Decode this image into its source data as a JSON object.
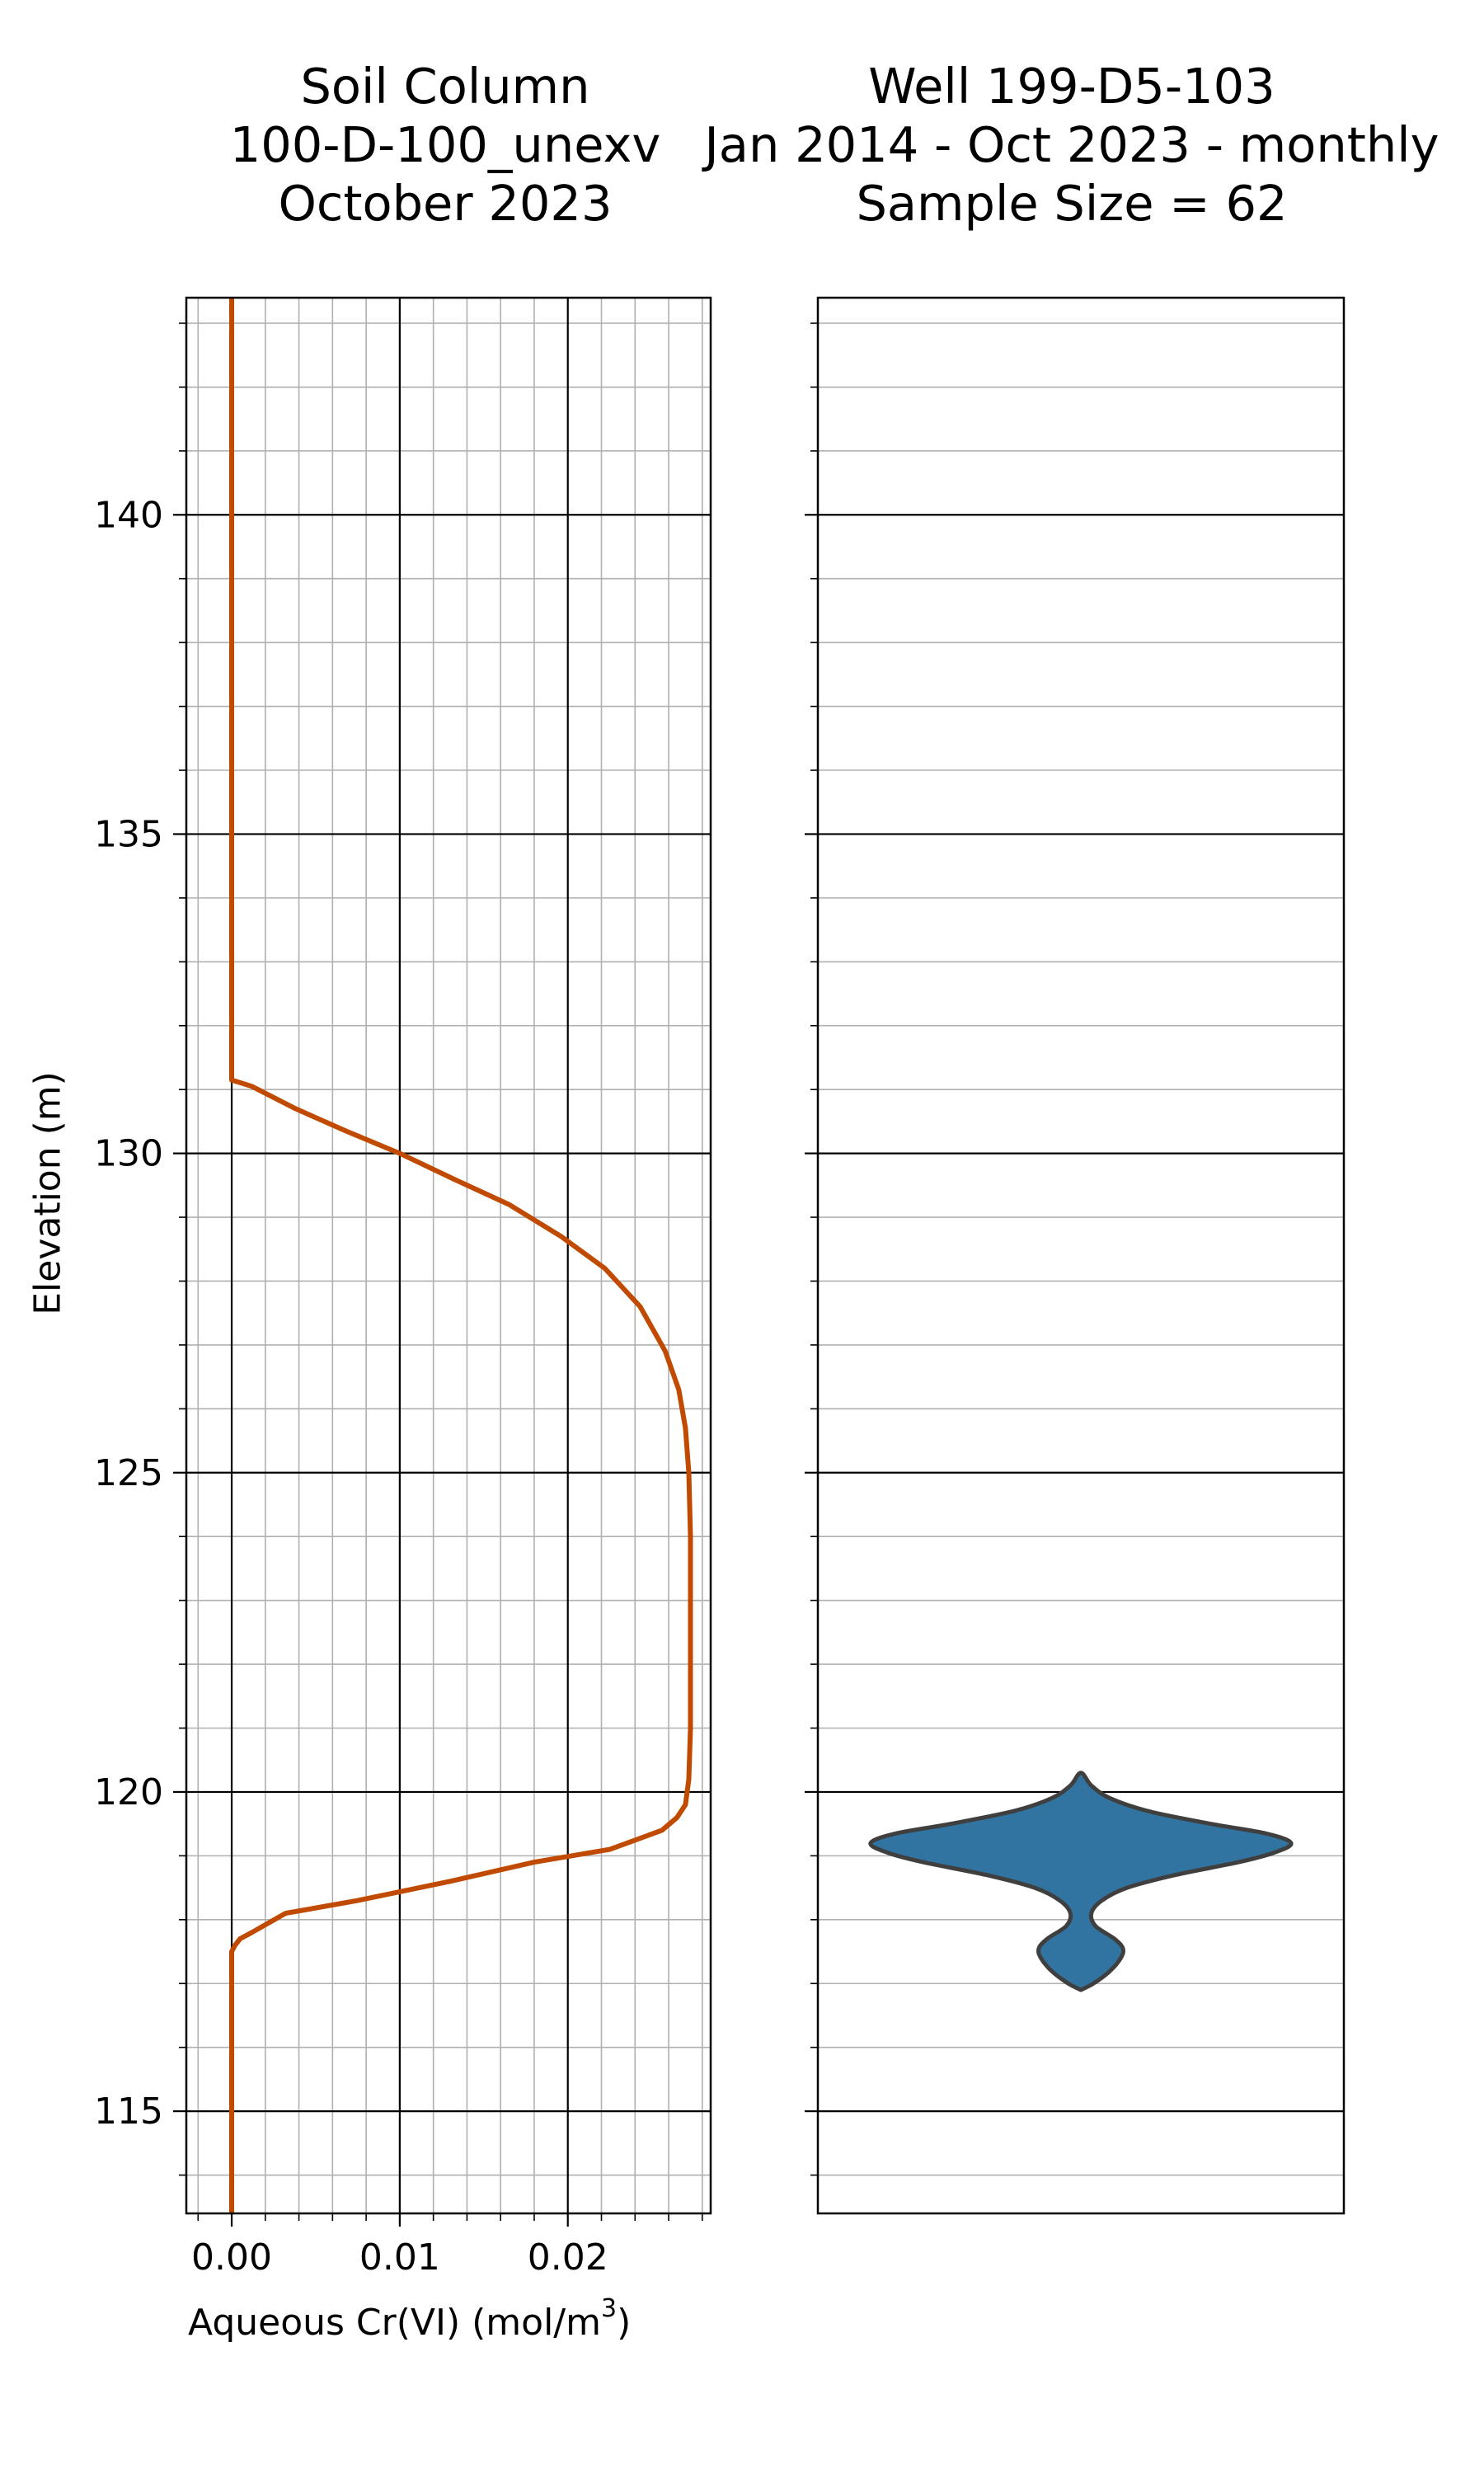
{
  "chart_data": [
    {
      "type": "line",
      "title_lines": [
        "Soil Column",
        "100-D-100_unexv",
        "October 2023"
      ],
      "xlabel_prefix": "Aqueous Cr(VI) (mol/m",
      "xlabel_sup": "3",
      "xlabel_suffix": ")",
      "ylabel": "Elevation (m)",
      "xlim": [
        -0.0027,
        0.0285
      ],
      "ylim": [
        113.4,
        143.4
      ],
      "xticks": [
        0.0,
        0.01,
        0.02
      ],
      "xtick_labels": [
        "0.00",
        "0.01",
        "0.02"
      ],
      "yticks": [
        115,
        120,
        125,
        130,
        135,
        140
      ],
      "ytick_labels": [
        "115",
        "120",
        "125",
        "130",
        "135",
        "140"
      ],
      "grid": true,
      "line_color": "#c04a00",
      "series": [
        {
          "x": [
            0.0,
            0.0,
            0.0,
            0.0,
            0.0,
            0.0,
            0.0,
            0.0,
            0.0,
            0.0,
            0.0002,
            0.0005,
            0.0012,
            0.0032,
            0.0075,
            0.013,
            0.018,
            0.0225,
            0.0256,
            0.0265,
            0.027,
            0.0272,
            0.0273,
            0.0273,
            0.0273,
            0.0272,
            0.027,
            0.0266,
            0.0258,
            0.0243,
            0.0222,
            0.0196,
            0.0165,
            0.0132,
            0.01,
            0.0068,
            0.0038,
            0.0012,
            0.0,
            0.0,
            0.0,
            0.0,
            0.0
          ],
          "y": [
            113.4,
            114.5,
            115.5,
            116.0,
            116.5,
            116.8,
            117.0,
            117.2,
            117.4,
            117.5,
            117.6,
            117.7,
            117.8,
            118.1,
            118.3,
            118.6,
            118.9,
            119.1,
            119.4,
            119.6,
            119.8,
            120.2,
            121.0,
            122.5,
            124.0,
            125.0,
            125.7,
            126.3,
            126.9,
            127.6,
            128.2,
            128.7,
            129.2,
            129.6,
            130.0,
            130.35,
            130.7,
            131.05,
            131.15,
            133.0,
            136.0,
            140.0,
            143.4
          ]
        }
      ]
    },
    {
      "type": "violin",
      "title_lines": [
        "Well 199-D5-103",
        "Jan 2014 - Oct 2023 - monthly",
        "Sample Size = 62"
      ],
      "ylim": [
        113.4,
        143.4
      ],
      "yticks": [
        115,
        120,
        125,
        130,
        135,
        140
      ],
      "grid": true,
      "fill_color": "#3274a1",
      "edge_color": "#3f3f3f",
      "density_elev": [
        116.9,
        117.0,
        117.2,
        117.4,
        117.55,
        117.7,
        117.9,
        118.1,
        118.3,
        118.5,
        118.7,
        118.9,
        119.05,
        119.2,
        119.35,
        119.5,
        119.7,
        119.9,
        120.1,
        120.3
      ],
      "density_width": [
        0.0,
        0.06,
        0.14,
        0.19,
        0.2,
        0.16,
        0.07,
        0.05,
        0.1,
        0.22,
        0.45,
        0.75,
        0.92,
        1.0,
        0.88,
        0.62,
        0.32,
        0.14,
        0.05,
        0.0
      ]
    }
  ]
}
